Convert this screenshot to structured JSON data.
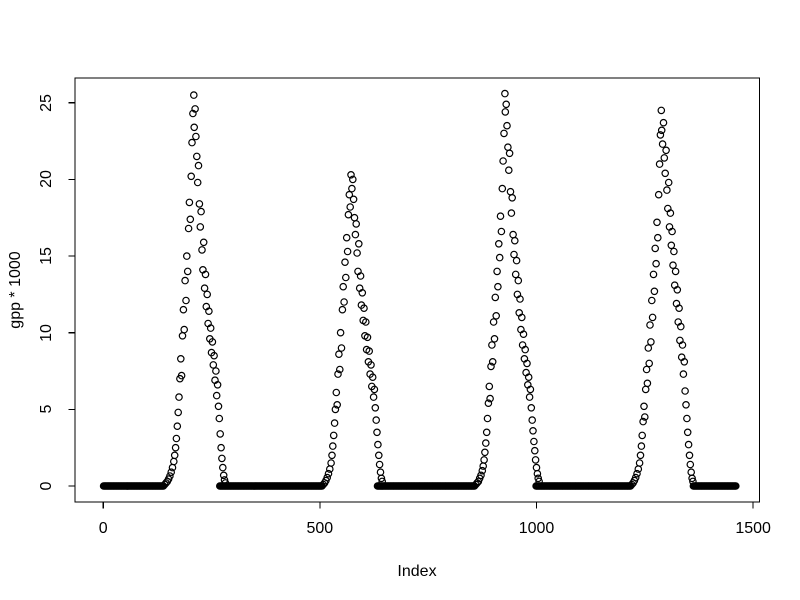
{
  "figure": {
    "background": "#ffffff",
    "foreground": "#000000"
  },
  "chart_data": {
    "type": "scatter",
    "title": "",
    "xlabel": "Index",
    "ylabel": "gpp * 1000",
    "x_ticks": [
      0,
      500,
      1000,
      1500
    ],
    "y_ticks": [
      0,
      5,
      10,
      15,
      20,
      25
    ],
    "xlim": [
      -60,
      1515
    ],
    "ylim": [
      -1,
      26.6
    ],
    "grid": false,
    "legend": null,
    "marker": "open-circle",
    "marker_color": "#000000",
    "n_points_approx": 1460,
    "zero_runs": [
      [
        1,
        140
      ],
      [
        269,
        506
      ],
      [
        633,
        858
      ],
      [
        999,
        1218
      ],
      [
        1362,
        1460
      ]
    ],
    "zero_step": 2,
    "points": [
      [
        142,
        0.1
      ],
      [
        145,
        0.2
      ],
      [
        148,
        0.3
      ],
      [
        151,
        0.45
      ],
      [
        154,
        0.65
      ],
      [
        157,
        0.9
      ],
      [
        160,
        1.2
      ],
      [
        163,
        1.6
      ],
      [
        165,
        2.0
      ],
      [
        167,
        2.5
      ],
      [
        169,
        3.1
      ],
      [
        171,
        3.9
      ],
      [
        173,
        4.8
      ],
      [
        175,
        5.8
      ],
      [
        177,
        7.0
      ],
      [
        179,
        8.3
      ],
      [
        181,
        7.2
      ],
      [
        183,
        9.8
      ],
      [
        185,
        11.5
      ],
      [
        187,
        10.2
      ],
      [
        189,
        13.4
      ],
      [
        191,
        12.1
      ],
      [
        193,
        15.0
      ],
      [
        195,
        14.0
      ],
      [
        197,
        16.8
      ],
      [
        199,
        18.5
      ],
      [
        201,
        17.4
      ],
      [
        203,
        20.2
      ],
      [
        205,
        22.4
      ],
      [
        207,
        24.3
      ],
      [
        209,
        25.5
      ],
      [
        210,
        23.4
      ],
      [
        212,
        24.6
      ],
      [
        214,
        22.8
      ],
      [
        216,
        21.5
      ],
      [
        218,
        19.8
      ],
      [
        220,
        20.9
      ],
      [
        222,
        18.4
      ],
      [
        224,
        16.9
      ],
      [
        226,
        17.9
      ],
      [
        228,
        15.4
      ],
      [
        230,
        14.1
      ],
      [
        232,
        15.9
      ],
      [
        234,
        12.9
      ],
      [
        236,
        13.8
      ],
      [
        238,
        11.7
      ],
      [
        240,
        12.5
      ],
      [
        242,
        10.6
      ],
      [
        244,
        11.4
      ],
      [
        246,
        9.6
      ],
      [
        248,
        10.3
      ],
      [
        250,
        8.7
      ],
      [
        252,
        9.4
      ],
      [
        254,
        7.9
      ],
      [
        256,
        8.5
      ],
      [
        258,
        6.9
      ],
      [
        260,
        7.5
      ],
      [
        262,
        5.9
      ],
      [
        264,
        6.6
      ],
      [
        266,
        5.2
      ],
      [
        268,
        4.4
      ],
      [
        270,
        3.4
      ],
      [
        272,
        2.5
      ],
      [
        274,
        1.8
      ],
      [
        276,
        1.2
      ],
      [
        278,
        0.7
      ],
      [
        280,
        0.4
      ],
      [
        282,
        0.2
      ],
      [
        508,
        0.1
      ],
      [
        511,
        0.2
      ],
      [
        514,
        0.35
      ],
      [
        517,
        0.55
      ],
      [
        520,
        0.8
      ],
      [
        523,
        1.1
      ],
      [
        526,
        1.5
      ],
      [
        528,
        2.0
      ],
      [
        530,
        2.6
      ],
      [
        532,
        3.3
      ],
      [
        534,
        4.1
      ],
      [
        536,
        5.0
      ],
      [
        538,
        6.1
      ],
      [
        540,
        5.3
      ],
      [
        542,
        7.3
      ],
      [
        544,
        8.6
      ],
      [
        546,
        7.6
      ],
      [
        548,
        10.0
      ],
      [
        550,
        9.0
      ],
      [
        552,
        11.5
      ],
      [
        554,
        13.0
      ],
      [
        556,
        12.0
      ],
      [
        558,
        14.6
      ],
      [
        560,
        13.6
      ],
      [
        562,
        16.2
      ],
      [
        564,
        15.3
      ],
      [
        566,
        17.7
      ],
      [
        568,
        19.0
      ],
      [
        570,
        18.2
      ],
      [
        572,
        20.3
      ],
      [
        574,
        19.4
      ],
      [
        576,
        20.0
      ],
      [
        578,
        18.7
      ],
      [
        580,
        17.5
      ],
      [
        582,
        16.4
      ],
      [
        584,
        17.1
      ],
      [
        586,
        15.2
      ],
      [
        588,
        14.0
      ],
      [
        590,
        15.8
      ],
      [
        592,
        12.9
      ],
      [
        594,
        13.7
      ],
      [
        596,
        11.8
      ],
      [
        598,
        12.6
      ],
      [
        600,
        10.8
      ],
      [
        602,
        11.6
      ],
      [
        604,
        9.8
      ],
      [
        606,
        10.7
      ],
      [
        608,
        8.9
      ],
      [
        610,
        9.7
      ],
      [
        612,
        8.1
      ],
      [
        614,
        8.8
      ],
      [
        616,
        7.3
      ],
      [
        618,
        7.9
      ],
      [
        620,
        6.5
      ],
      [
        622,
        7.1
      ],
      [
        624,
        5.8
      ],
      [
        626,
        6.3
      ],
      [
        628,
        5.1
      ],
      [
        630,
        4.3
      ],
      [
        632,
        3.5
      ],
      [
        634,
        2.7
      ],
      [
        636,
        2.0
      ],
      [
        638,
        1.4
      ],
      [
        640,
        0.9
      ],
      [
        642,
        0.5
      ],
      [
        644,
        0.3
      ],
      [
        860,
        0.1
      ],
      [
        863,
        0.2
      ],
      [
        866,
        0.3
      ],
      [
        869,
        0.5
      ],
      [
        872,
        0.7
      ],
      [
        875,
        1.0
      ],
      [
        877,
        1.3
      ],
      [
        879,
        1.7
      ],
      [
        881,
        2.2
      ],
      [
        883,
        2.8
      ],
      [
        885,
        3.5
      ],
      [
        887,
        4.4
      ],
      [
        889,
        5.4
      ],
      [
        891,
        6.5
      ],
      [
        893,
        5.7
      ],
      [
        895,
        7.8
      ],
      [
        897,
        9.2
      ],
      [
        899,
        8.1
      ],
      [
        901,
        10.7
      ],
      [
        903,
        9.6
      ],
      [
        905,
        12.3
      ],
      [
        907,
        11.1
      ],
      [
        909,
        14.0
      ],
      [
        911,
        13.0
      ],
      [
        913,
        15.8
      ],
      [
        915,
        14.9
      ],
      [
        917,
        17.6
      ],
      [
        919,
        16.6
      ],
      [
        921,
        19.4
      ],
      [
        923,
        21.2
      ],
      [
        925,
        23.0
      ],
      [
        927,
        25.6
      ],
      [
        928,
        24.4
      ],
      [
        930,
        24.9
      ],
      [
        932,
        23.5
      ],
      [
        934,
        22.1
      ],
      [
        936,
        20.6
      ],
      [
        938,
        21.7
      ],
      [
        940,
        19.2
      ],
      [
        942,
        17.8
      ],
      [
        944,
        18.8
      ],
      [
        946,
        16.4
      ],
      [
        948,
        15.1
      ],
      [
        950,
        16.0
      ],
      [
        952,
        13.8
      ],
      [
        954,
        14.7
      ],
      [
        956,
        12.5
      ],
      [
        958,
        13.4
      ],
      [
        960,
        11.3
      ],
      [
        962,
        12.2
      ],
      [
        964,
        10.2
      ],
      [
        966,
        11.0
      ],
      [
        968,
        9.2
      ],
      [
        970,
        9.9
      ],
      [
        972,
        8.3
      ],
      [
        974,
        8.9
      ],
      [
        976,
        7.4
      ],
      [
        978,
        8.0
      ],
      [
        980,
        6.6
      ],
      [
        982,
        7.1
      ],
      [
        984,
        5.8
      ],
      [
        986,
        6.3
      ],
      [
        988,
        5.1
      ],
      [
        990,
        4.3
      ],
      [
        992,
        3.6
      ],
      [
        994,
        2.9
      ],
      [
        996,
        2.3
      ],
      [
        998,
        1.7
      ],
      [
        1000,
        1.2
      ],
      [
        1002,
        0.8
      ],
      [
        1004,
        0.5
      ],
      [
        1006,
        0.3
      ],
      [
        1220,
        0.1
      ],
      [
        1223,
        0.2
      ],
      [
        1226,
        0.35
      ],
      [
        1229,
        0.55
      ],
      [
        1232,
        0.8
      ],
      [
        1235,
        1.1
      ],
      [
        1238,
        1.5
      ],
      [
        1240,
        2.0
      ],
      [
        1242,
        2.6
      ],
      [
        1244,
        3.3
      ],
      [
        1246,
        4.2
      ],
      [
        1248,
        5.2
      ],
      [
        1250,
        4.5
      ],
      [
        1252,
        6.3
      ],
      [
        1254,
        7.6
      ],
      [
        1256,
        6.7
      ],
      [
        1258,
        9.0
      ],
      [
        1260,
        8.0
      ],
      [
        1262,
        10.5
      ],
      [
        1264,
        9.4
      ],
      [
        1266,
        12.1
      ],
      [
        1268,
        11.0
      ],
      [
        1270,
        13.8
      ],
      [
        1272,
        12.7
      ],
      [
        1274,
        15.5
      ],
      [
        1276,
        14.5
      ],
      [
        1278,
        17.2
      ],
      [
        1280,
        16.2
      ],
      [
        1282,
        19.0
      ],
      [
        1284,
        21.0
      ],
      [
        1286,
        22.9
      ],
      [
        1288,
        24.5
      ],
      [
        1289,
        23.2
      ],
      [
        1291,
        22.3
      ],
      [
        1293,
        23.7
      ],
      [
        1295,
        21.4
      ],
      [
        1297,
        20.4
      ],
      [
        1299,
        21.9
      ],
      [
        1301,
        19.3
      ],
      [
        1303,
        18.1
      ],
      [
        1305,
        19.8
      ],
      [
        1307,
        16.9
      ],
      [
        1309,
        17.8
      ],
      [
        1311,
        15.7
      ],
      [
        1313,
        16.6
      ],
      [
        1315,
        14.4
      ],
      [
        1317,
        15.3
      ],
      [
        1319,
        13.1
      ],
      [
        1321,
        14.0
      ],
      [
        1323,
        11.9
      ],
      [
        1325,
        12.8
      ],
      [
        1327,
        10.7
      ],
      [
        1329,
        11.6
      ],
      [
        1331,
        9.5
      ],
      [
        1333,
        10.4
      ],
      [
        1335,
        8.4
      ],
      [
        1337,
        9.2
      ],
      [
        1339,
        7.3
      ],
      [
        1341,
        8.1
      ],
      [
        1343,
        6.2
      ],
      [
        1345,
        5.3
      ],
      [
        1347,
        4.4
      ],
      [
        1349,
        3.5
      ],
      [
        1351,
        2.7
      ],
      [
        1353,
        2.0
      ],
      [
        1355,
        1.4
      ],
      [
        1357,
        0.9
      ],
      [
        1359,
        0.5
      ],
      [
        1361,
        0.3
      ]
    ]
  }
}
